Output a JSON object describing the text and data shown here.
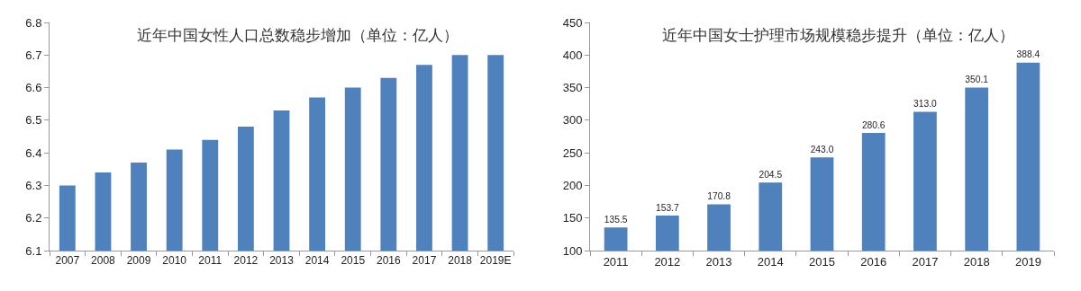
{
  "chart_data": [
    {
      "type": "bar",
      "title": "近年中国女性人口总数稳步增加（单位：亿人）",
      "categories": [
        "2007",
        "2008",
        "2009",
        "2010",
        "2011",
        "2012",
        "2013",
        "2014",
        "2015",
        "2016",
        "2017",
        "2018",
        "2019E"
      ],
      "series": [
        {
          "color": "#4f81bd",
          "values": [
            6.3,
            6.34,
            6.37,
            6.41,
            6.44,
            6.48,
            6.53,
            6.57,
            6.6,
            6.63,
            6.67,
            6.7,
            6.7
          ]
        }
      ],
      "ylim": [
        6.1,
        6.8
      ],
      "yticks": [
        {
          "value": 6.1,
          "label": "6.1"
        },
        {
          "value": 6.2,
          "label": "6.2"
        },
        {
          "value": 6.3,
          "label": "6.3"
        },
        {
          "value": 6.4,
          "label": "6.4"
        },
        {
          "value": 6.5,
          "label": "6.5"
        },
        {
          "value": 6.6,
          "label": "6.6"
        },
        {
          "value": 6.7,
          "label": "6.7"
        },
        {
          "value": 6.8,
          "label": "6.8"
        }
      ]
    },
    {
      "type": "bar",
      "title": "近年中国女士护理市场规模稳步提升（单位：亿人）",
      "categories": [
        "2011",
        "2012",
        "2013",
        "2014",
        "2015",
        "2016",
        "2017",
        "2018",
        "2019"
      ],
      "series": [
        {
          "color": "#4f81bd",
          "values": [
            135.5,
            153.7,
            170.8,
            204.5,
            243.0,
            280.6,
            313.0,
            350.1,
            388.4
          ],
          "value_labels": [
            "135.5",
            "153.7",
            "170.8",
            "204.5",
            "243.0",
            "280.6",
            "313.0",
            "350.1",
            "388.4"
          ]
        }
      ],
      "ylim": [
        100,
        450
      ],
      "yticks": [
        100,
        150,
        200,
        250,
        300,
        350,
        400,
        450
      ]
    }
  ]
}
